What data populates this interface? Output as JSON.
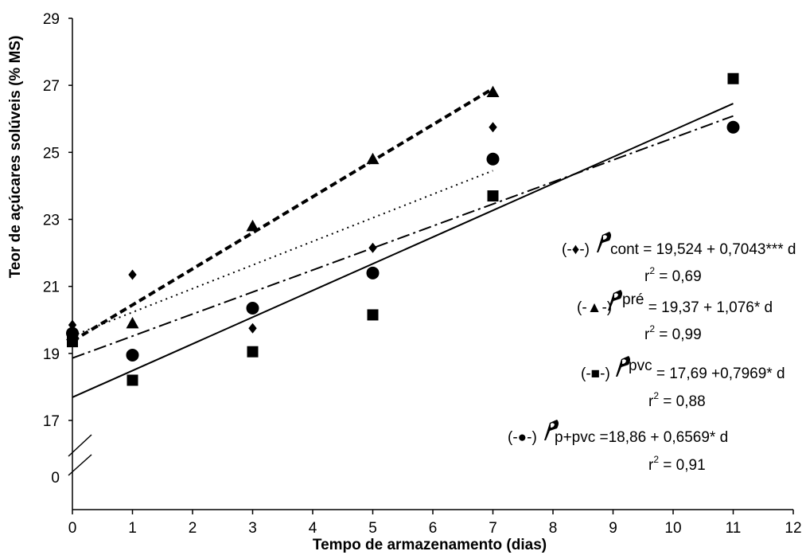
{
  "chart_data": {
    "type": "scatter",
    "xlabel": "Tempo de armazenamento (dias)",
    "ylabel": "Teor de açúcares solúveis (% MS)",
    "xlim": [
      0,
      12
    ],
    "x_ticks": [
      "0",
      "1",
      "2",
      "3",
      "4",
      "5",
      "6",
      "7",
      "8",
      "9",
      "10",
      "11",
      "12"
    ],
    "ylim": [
      17,
      29
    ],
    "y_ticks": [
      "17",
      "19",
      "21",
      "23",
      "25",
      "27",
      "29"
    ],
    "y_break_label": "0",
    "grid": false,
    "series": [
      {
        "marker": "diamond",
        "x": [
          0,
          1,
          3,
          5,
          7
        ],
        "y": [
          19.85,
          21.35,
          19.75,
          22.15,
          25.75
        ],
        "fit": {
          "intercept": 19.524,
          "slope": 0.7043,
          "x_range": [
            0,
            7
          ],
          "line_style": "dotted"
        },
        "equation": {
          "prefix": "(-♦-)",
          "name": "cont",
          "formula": " = 19,524 + 0,7043*** d",
          "r2_label": "r",
          "r2_sup": "2",
          "r2_value": " = 0,69"
        }
      },
      {
        "marker": "triangle",
        "x": [
          0,
          1,
          3,
          5,
          7
        ],
        "y": [
          19.55,
          19.9,
          22.8,
          24.8,
          26.8
        ],
        "fit": {
          "intercept": 19.37,
          "slope": 1.076,
          "x_range": [
            0,
            7
          ],
          "line_style": "dashed"
        },
        "equation": {
          "prefix": "(-▲-)",
          "name": "pré",
          "formula": " = 19,37 + 1,076* d",
          "r2_label": "r",
          "r2_sup": "2",
          "r2_value": " = 0,99"
        }
      },
      {
        "marker": "square",
        "x": [
          0,
          1,
          3,
          5,
          7,
          11
        ],
        "y": [
          19.35,
          18.2,
          19.05,
          20.15,
          23.7,
          27.2
        ],
        "fit": {
          "intercept": 17.69,
          "slope": 0.7969,
          "x_range": [
            0,
            11
          ],
          "line_style": "solid"
        },
        "equation": {
          "prefix": "(-■-)",
          "name": "pvc",
          "formula": " = 17,69 +0,7969* d",
          "r2_label": "r",
          "r2_sup": "2",
          "r2_value": " = 0,88"
        }
      },
      {
        "marker": "circle",
        "x": [
          0,
          1,
          3,
          5,
          7,
          11
        ],
        "y": [
          19.6,
          18.95,
          20.35,
          21.4,
          24.8,
          25.75
        ],
        "fit": {
          "intercept": 18.86,
          "slope": 0.6569,
          "x_range": [
            0,
            11
          ],
          "line_style": "dash-dot"
        },
        "equation": {
          "prefix": "(-●-)",
          "name": "p+pvc",
          "formula": " =18,86 + 0,6569* d",
          "r2_label": "r",
          "r2_sup": "2",
          "r2_value": " = 0,91"
        }
      }
    ]
  }
}
